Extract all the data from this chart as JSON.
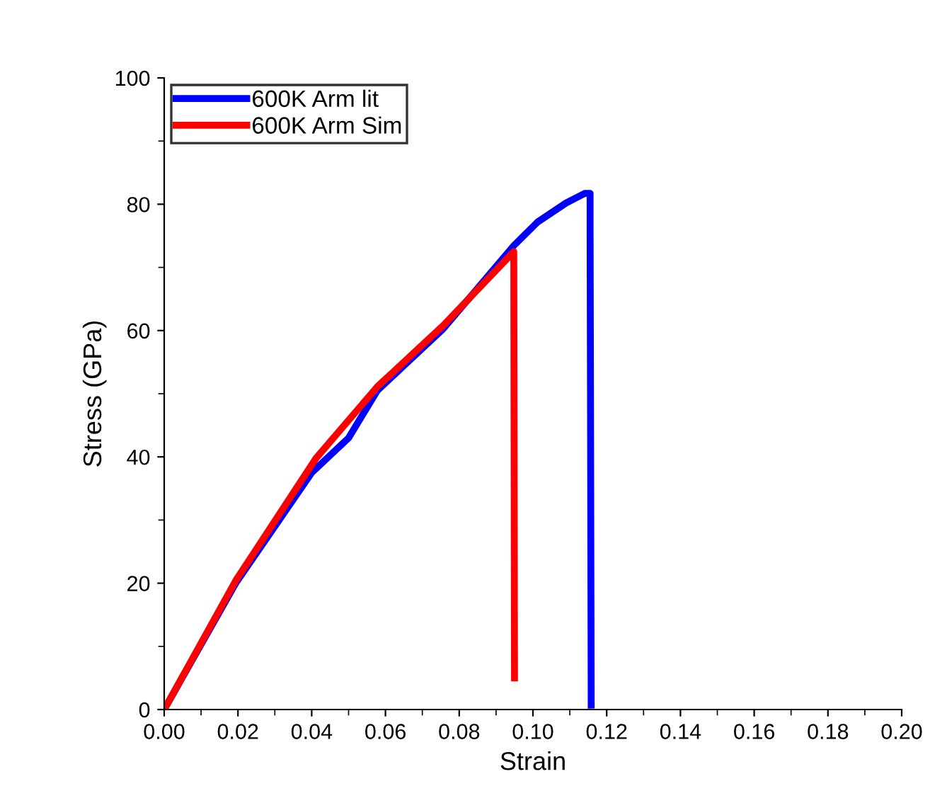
{
  "chart_data": {
    "type": "line",
    "xlabel": "Strain",
    "ylabel": "Stress (GPa)",
    "xlim": [
      0,
      0.2
    ],
    "ylim": [
      0,
      100
    ],
    "xticks": [
      {
        "value": 0,
        "label": "0.00"
      },
      {
        "value": 0.02,
        "label": "0.02"
      },
      {
        "value": 0.04,
        "label": "0.04"
      },
      {
        "value": 0.06,
        "label": "0.06"
      },
      {
        "value": 0.08,
        "label": "0.08"
      },
      {
        "value": 0.1,
        "label": "0.10"
      },
      {
        "value": 0.12,
        "label": "0.12"
      },
      {
        "value": 0.14,
        "label": "0.14"
      },
      {
        "value": 0.16,
        "label": "0.16"
      },
      {
        "value": 0.18,
        "label": "0.18"
      },
      {
        "value": 0.2,
        "label": "0.20"
      }
    ],
    "yticks": [
      0,
      20,
      40,
      60,
      80,
      100
    ],
    "grid": false,
    "legend": "top left",
    "marker": "none",
    "line_style": "solid",
    "series": [
      {
        "name": "600K Arm lit",
        "color": "#0000ff",
        "x": [
          0,
          0.0194,
          0.04,
          0.05,
          0.0578,
          0.0757,
          0.0949,
          0.1013,
          0.109,
          0.114,
          0.1155,
          0.1155,
          0.1158
        ],
        "values": [
          0,
          20,
          37.5,
          43,
          50.5,
          60.3,
          73.5,
          77.2,
          80.2,
          81.7,
          81.7,
          76.8,
          0.7
        ]
      },
      {
        "name": "600K Arm Sim",
        "color": "#ff0000",
        "x": [
          0,
          0.0194,
          0.0412,
          0.0578,
          0.0757,
          0.0948,
          0.095
        ],
        "values": [
          0,
          20.4,
          39.8,
          51.1,
          60.8,
          72.5,
          5
        ]
      }
    ]
  }
}
